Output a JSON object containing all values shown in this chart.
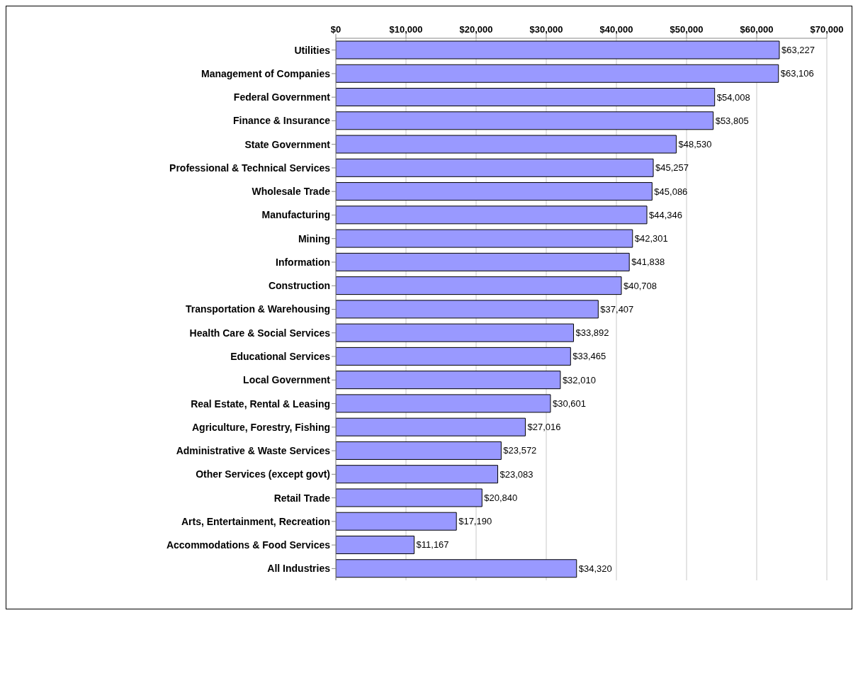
{
  "chart_data": {
    "type": "bar",
    "orientation": "horizontal",
    "categories": [
      "Utilities",
      "Management of Companies",
      "Federal Government",
      "Finance & Insurance",
      "State Government",
      "Professional & Technical Services",
      "Wholesale Trade",
      "Manufacturing",
      "Mining",
      "Information",
      "Construction",
      "Transportation & Warehousing",
      "Health Care & Social Services",
      "Educational Services",
      "Local Government",
      "Real Estate, Rental & Leasing",
      "Agriculture, Forestry, Fishing",
      "Administrative & Waste Services",
      "Other Services (except govt)",
      "Retail Trade",
      "Arts, Entertainment, Recreation",
      "Accommodations & Food Services",
      "All Industries"
    ],
    "values": [
      63227,
      63106,
      54008,
      53805,
      48530,
      45257,
      45086,
      44346,
      42301,
      41838,
      40708,
      37407,
      33892,
      33465,
      32010,
      30601,
      27016,
      23572,
      23083,
      20840,
      17190,
      11167,
      34320
    ],
    "value_labels": [
      "$63,227",
      "$63,106",
      "$54,008",
      "$53,805",
      "$48,530",
      "$45,257",
      "$45,086",
      "$44,346",
      "$42,301",
      "$41,838",
      "$40,708",
      "$37,407",
      "$33,892",
      "$33,465",
      "$32,010",
      "$30,601",
      "$27,016",
      "$23,572",
      "$23,083",
      "$20,840",
      "$17,190",
      "$11,167",
      "$34,320"
    ],
    "color": "#9999ff",
    "xlim": [
      0,
      70000
    ],
    "xticks": [
      {
        "value": 0,
        "label": "$0"
      },
      {
        "value": 10000,
        "label": "$10,000"
      },
      {
        "value": 20000,
        "label": "$20,000"
      },
      {
        "value": 30000,
        "label": "$30,000"
      },
      {
        "value": 40000,
        "label": "$40,000"
      },
      {
        "value": 50000,
        "label": "$50,000"
      },
      {
        "value": 60000,
        "label": "$60,000"
      },
      {
        "value": 70000,
        "label": "$70,000"
      }
    ],
    "grid": "x"
  }
}
